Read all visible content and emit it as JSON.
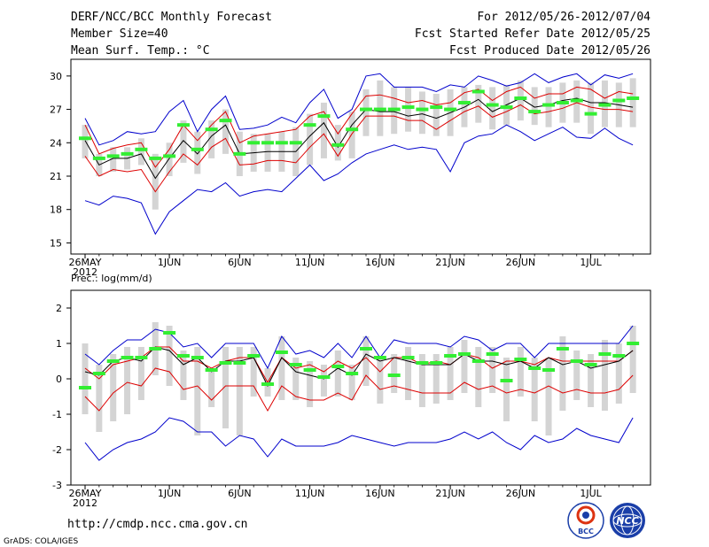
{
  "header": {
    "title": "DERF/NCC/BCC Monthly Forecast",
    "member_size": "Member Size=40",
    "variable": "Mean Surf. Temp.: °C",
    "period": "For 2012/05/26-2012/07/04",
    "refer_date": "Fcst Started Refer Date 2012/05/25",
    "produced_date": "Fcst Produced Date 2012/05/26"
  },
  "footer": {
    "url": "http://cmdp.ncc.cma.gov.cn",
    "credit": "GrADS: COLA/IGES",
    "logo_bcc": "BCC",
    "logo_ncc": "NCC"
  },
  "colors": {
    "max_min": "#0000cc",
    "pct": "#dd0000",
    "mean": "#000000",
    "obs": "#33ee33",
    "box": "#d4d4d4"
  },
  "chart_data": [
    {
      "type": "line",
      "title": "Mean Surf. Temp.: °C",
      "x_tick_labels": [
        "26MAY",
        "1JUN",
        "6JUN",
        "11JUN",
        "16JUN",
        "21JUN",
        "26JUN",
        "1JUL"
      ],
      "x_tick_days": [
        0,
        6,
        11,
        16,
        21,
        26,
        31,
        36
      ],
      "year_label": "2012",
      "y_ticks": [
        15,
        18,
        21,
        24,
        27,
        30
      ],
      "ylim": [
        14,
        31.5
      ],
      "days": 40,
      "series": [
        {
          "name": "max",
          "values": [
            26.2,
            23.8,
            24.2,
            25.0,
            24.8,
            25.0,
            26.8,
            27.8,
            25.0,
            27.0,
            28.2,
            25.2,
            25.3,
            25.6,
            26.3,
            25.8,
            27.6,
            28.8,
            26.2,
            27.0,
            30.0,
            30.2,
            29.0,
            29.0,
            29.0,
            28.6,
            29.2,
            29.0,
            30.0,
            29.6,
            29.1,
            29.4,
            30.2,
            29.4,
            29.9,
            30.2,
            29.2,
            30.1,
            29.8,
            30.2
          ]
        },
        {
          "name": "p90",
          "values": [
            25.6,
            23.0,
            23.5,
            23.8,
            24.0,
            21.8,
            23.4,
            25.6,
            24.2,
            25.6,
            26.8,
            24.0,
            24.6,
            24.8,
            25.0,
            25.2,
            26.4,
            26.8,
            24.8,
            26.6,
            28.2,
            28.3,
            28.0,
            27.6,
            27.8,
            27.4,
            27.6,
            28.5,
            28.8,
            27.8,
            28.6,
            29.0,
            28.0,
            28.4,
            28.4,
            29.0,
            28.8,
            28.0,
            28.6,
            28.4
          ]
        },
        {
          "name": "mean",
          "values": [
            24.2,
            22.0,
            22.6,
            22.6,
            23.0,
            20.8,
            22.6,
            24.2,
            23.0,
            24.6,
            25.6,
            23.0,
            23.1,
            23.2,
            23.2,
            23.2,
            24.6,
            25.8,
            23.6,
            25.6,
            27.0,
            26.8,
            26.8,
            26.4,
            26.6,
            26.2,
            26.7,
            27.2,
            27.9,
            26.8,
            27.4,
            28.0,
            27.2,
            27.4,
            27.8,
            28.0,
            27.6,
            27.6,
            27.4,
            27.2
          ]
        },
        {
          "name": "p10",
          "values": [
            22.8,
            21.0,
            21.6,
            21.4,
            21.6,
            19.6,
            21.4,
            23.0,
            22.0,
            23.6,
            24.4,
            22.0,
            22.1,
            22.4,
            22.4,
            22.2,
            23.6,
            24.8,
            22.8,
            24.8,
            26.4,
            26.4,
            26.4,
            26.0,
            26.0,
            25.2,
            26.0,
            26.8,
            27.3,
            26.3,
            26.8,
            27.4,
            26.6,
            26.8,
            27.1,
            27.6,
            27.2,
            27.0,
            27.0,
            26.8
          ]
        },
        {
          "name": "min",
          "values": [
            18.8,
            18.4,
            19.2,
            19.0,
            18.6,
            15.8,
            17.8,
            18.8,
            19.8,
            19.6,
            20.4,
            19.2,
            19.6,
            19.8,
            19.6,
            20.8,
            22.0,
            20.6,
            21.2,
            22.2,
            23.0,
            23.4,
            23.8,
            23.4,
            23.6,
            23.4,
            21.4,
            24.0,
            24.6,
            24.8,
            25.6,
            25.0,
            24.2,
            24.8,
            25.4,
            24.5,
            24.4,
            25.3,
            24.4,
            23.8
          ]
        },
        {
          "name": "observed",
          "values": [
            24.4,
            22.6,
            22.8,
            23.0,
            23.4,
            22.6,
            22.8,
            25.6,
            23.4,
            25.2,
            26.0,
            23.0,
            24.0,
            24.0,
            24.0,
            24.0,
            25.6,
            26.4,
            23.8,
            25.2,
            27.0,
            27.0,
            27.0,
            27.2,
            27.0,
            27.2,
            27.0,
            27.6,
            28.6,
            27.4,
            27.2,
            28.0,
            26.8,
            27.4,
            27.6,
            27.8,
            26.6,
            27.4,
            27.8,
            28.0
          ]
        },
        {
          "name": "box_hi",
          "values": [
            25.6,
            23.0,
            23.6,
            23.6,
            24.4,
            23.0,
            24.0,
            26.0,
            25.0,
            26.0,
            27.0,
            25.0,
            24.8,
            24.8,
            25.0,
            25.4,
            26.6,
            27.6,
            25.6,
            26.8,
            28.8,
            29.6,
            29.0,
            29.0,
            28.6,
            28.4,
            28.8,
            29.0,
            29.2,
            29.0,
            29.2,
            29.6,
            29.0,
            29.0,
            29.4,
            29.6,
            29.4,
            29.6,
            29.4,
            29.8
          ]
        },
        {
          "name": "box_lo",
          "values": [
            22.6,
            21.0,
            21.4,
            21.6,
            22.0,
            18.0,
            21.0,
            22.2,
            21.2,
            22.6,
            23.0,
            21.0,
            21.4,
            21.4,
            21.4,
            21.0,
            22.0,
            22.6,
            22.4,
            22.6,
            24.6,
            24.6,
            24.8,
            25.0,
            24.8,
            24.6,
            24.6,
            25.4,
            25.8,
            25.2,
            25.6,
            26.0,
            25.6,
            25.4,
            25.8,
            25.8,
            24.8,
            25.4,
            25.4,
            25.4
          ]
        }
      ]
    },
    {
      "type": "line",
      "title": "Prec.: log(mm/d)",
      "x_tick_labels": [
        "26MAY",
        "1JUN",
        "6JUN",
        "11JUN",
        "16JUN",
        "21JUN",
        "26JUN",
        "1JUL"
      ],
      "x_tick_days": [
        0,
        6,
        11,
        16,
        21,
        26,
        31,
        36
      ],
      "year_label": "2012",
      "y_ticks": [
        -3,
        -2,
        -1,
        0,
        1,
        2
      ],
      "ylim": [
        -3,
        2.5
      ],
      "days": 40,
      "series": [
        {
          "name": "max",
          "values": [
            0.7,
            0.4,
            0.8,
            1.1,
            1.1,
            1.4,
            1.3,
            0.9,
            1.0,
            0.6,
            1.0,
            1.0,
            1.0,
            0.3,
            1.2,
            0.7,
            0.8,
            0.6,
            1.0,
            0.6,
            1.2,
            0.6,
            1.1,
            1.0,
            1.0,
            1.0,
            0.9,
            1.2,
            1.1,
            0.8,
            1.0,
            1.0,
            0.6,
            1.0,
            1.0,
            1.0,
            1.0,
            1.0,
            1.0,
            1.5
          ]
        },
        {
          "name": "p90",
          "values": [
            0.3,
            0.0,
            0.4,
            0.5,
            0.6,
            0.9,
            0.9,
            0.5,
            0.5,
            0.3,
            0.5,
            0.6,
            0.6,
            -0.1,
            0.6,
            0.3,
            0.4,
            0.2,
            0.5,
            0.3,
            0.6,
            0.2,
            0.6,
            0.6,
            0.4,
            0.5,
            0.4,
            0.7,
            0.6,
            0.3,
            0.5,
            0.5,
            0.4,
            0.6,
            0.5,
            0.5,
            0.5,
            0.5,
            0.5,
            0.8
          ]
        },
        {
          "name": "mean",
          "values": [
            0.2,
            0.1,
            0.5,
            0.6,
            0.5,
            0.9,
            0.8,
            0.4,
            0.6,
            0.2,
            0.5,
            0.5,
            0.6,
            -0.2,
            0.6,
            0.2,
            0.1,
            0.0,
            0.3,
            0.1,
            0.7,
            0.5,
            0.6,
            0.5,
            0.4,
            0.4,
            0.4,
            0.7,
            0.5,
            0.5,
            0.4,
            0.5,
            0.3,
            0.6,
            0.4,
            0.5,
            0.3,
            0.4,
            0.5,
            0.8
          ]
        },
        {
          "name": "p10",
          "values": [
            -0.5,
            -0.9,
            -0.4,
            -0.1,
            -0.2,
            0.3,
            0.2,
            -0.3,
            -0.2,
            -0.6,
            -0.2,
            -0.2,
            -0.2,
            -0.9,
            -0.2,
            -0.5,
            -0.6,
            -0.6,
            -0.4,
            -0.6,
            0.1,
            -0.3,
            -0.2,
            -0.3,
            -0.4,
            -0.4,
            -0.4,
            -0.1,
            -0.3,
            -0.2,
            -0.4,
            -0.3,
            -0.4,
            -0.2,
            -0.4,
            -0.3,
            -0.4,
            -0.4,
            -0.3,
            0.1
          ]
        },
        {
          "name": "min",
          "values": [
            -1.8,
            -2.3,
            -2.0,
            -1.8,
            -1.7,
            -1.5,
            -1.1,
            -1.2,
            -1.5,
            -1.5,
            -1.9,
            -1.6,
            -1.7,
            -2.2,
            -1.7,
            -1.9,
            -1.9,
            -1.9,
            -1.8,
            -1.6,
            -1.7,
            -1.8,
            -1.9,
            -1.8,
            -1.8,
            -1.8,
            -1.7,
            -1.5,
            -1.7,
            -1.5,
            -1.8,
            -2.0,
            -1.6,
            -1.8,
            -1.7,
            -1.4,
            -1.6,
            -1.7,
            -1.8,
            -1.1
          ]
        },
        {
          "name": "observed",
          "values": [
            -0.25,
            0.15,
            0.5,
            0.6,
            0.6,
            0.85,
            1.3,
            0.65,
            0.6,
            0.25,
            0.45,
            0.45,
            0.65,
            -0.15,
            0.75,
            0.4,
            0.25,
            0.05,
            0.35,
            0.15,
            0.85,
            0.6,
            0.1,
            0.6,
            0.45,
            0.45,
            0.65,
            0.7,
            0.5,
            0.7,
            -0.05,
            0.55,
            0.3,
            0.25,
            0.85,
            0.5,
            0.4,
            0.7,
            0.65,
            1.0
          ]
        },
        {
          "name": "box_hi",
          "values": [
            1.0,
            0.4,
            0.7,
            0.9,
            0.9,
            1.6,
            1.5,
            0.8,
            0.9,
            0.3,
            0.9,
            0.9,
            0.9,
            0.3,
            1.2,
            0.6,
            0.5,
            0.4,
            0.8,
            0.4,
            1.2,
            0.6,
            0.7,
            0.9,
            0.7,
            0.7,
            0.9,
            1.1,
            0.9,
            0.9,
            0.6,
            0.9,
            0.6,
            0.6,
            1.2,
            0.8,
            0.7,
            1.1,
            1.0,
            1.5
          ]
        },
        {
          "name": "box_lo",
          "values": [
            -1.0,
            -1.5,
            -1.2,
            -1.0,
            -0.6,
            0.1,
            -0.2,
            -0.6,
            -1.6,
            -0.8,
            -1.4,
            -1.6,
            -0.5,
            -0.5,
            -0.6,
            -0.6,
            -0.8,
            -0.5,
            -0.5,
            -0.6,
            -0.2,
            -0.7,
            -0.4,
            -0.6,
            -0.8,
            -0.7,
            -0.6,
            -0.4,
            -0.8,
            -0.4,
            -1.2,
            -0.5,
            -1.2,
            -1.6,
            -0.9,
            -0.6,
            -0.8,
            -0.9,
            -0.7,
            -0.4
          ]
        }
      ]
    }
  ]
}
